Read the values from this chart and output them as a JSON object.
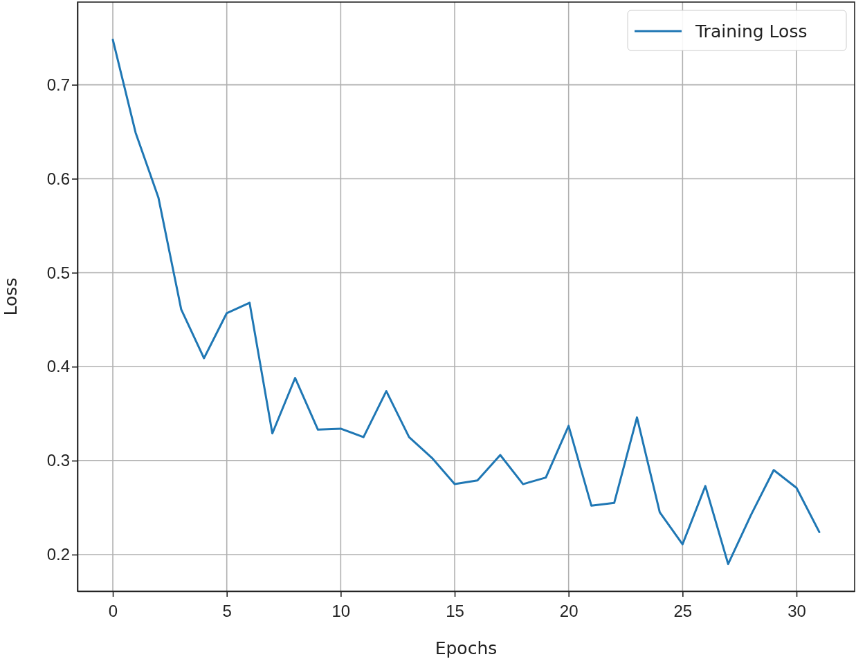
{
  "chart_data": {
    "type": "line",
    "xlabel": "Epochs",
    "ylabel": "Loss",
    "x": [
      0,
      1,
      2,
      3,
      4,
      5,
      6,
      7,
      8,
      9,
      10,
      11,
      12,
      13,
      14,
      15,
      16,
      17,
      18,
      19,
      20,
      21,
      22,
      23,
      24,
      25,
      26,
      27,
      28,
      29,
      30,
      31
    ],
    "series": [
      {
        "name": "Training Loss",
        "color": "#1f77b4",
        "values": [
          0.748,
          0.649,
          0.58,
          0.461,
          0.409,
          0.457,
          0.468,
          0.329,
          0.388,
          0.333,
          0.334,
          0.325,
          0.374,
          0.325,
          0.303,
          0.275,
          0.279,
          0.306,
          0.275,
          0.282,
          0.337,
          0.252,
          0.255,
          0.346,
          0.245,
          0.211,
          0.273,
          0.19,
          0.242,
          0.29,
          0.271,
          0.224
        ]
      }
    ],
    "xlim": [
      -1.55,
      32.55
    ],
    "ylim": [
      0.161,
      0.788
    ],
    "xticks": [
      0,
      5,
      10,
      15,
      20,
      25,
      30
    ],
    "yticks": [
      0.2,
      0.3,
      0.4,
      0.5,
      0.6,
      0.7
    ],
    "grid": true,
    "legend": "top right",
    "line_style": "solid",
    "marker": "none"
  }
}
